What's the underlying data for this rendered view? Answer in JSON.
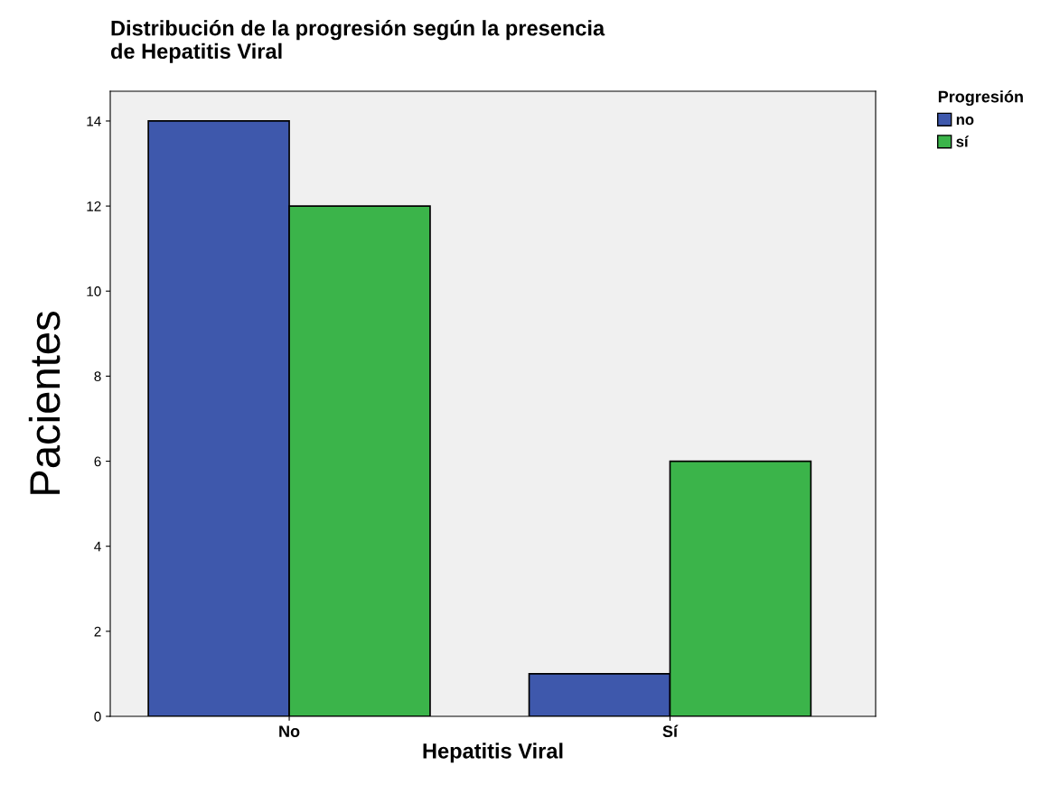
{
  "chart_data": {
    "type": "bar",
    "title": "Distribución de la progresión según la presencia\nde Hepatitis Viral",
    "xlabel": "Hepatitis Viral",
    "ylabel": "Pacientes",
    "legend_title": "Progresión",
    "categories": [
      "No",
      "Sí"
    ],
    "series": [
      {
        "name": "no",
        "color": "#3e58ac",
        "values": [
          14,
          1
        ]
      },
      {
        "name": "sí",
        "color": "#3bb44a",
        "values": [
          12,
          6
        ]
      }
    ],
    "ylim": [
      0,
      14.7
    ],
    "yticks": [
      0,
      2,
      4,
      6,
      8,
      10,
      12,
      14
    ],
    "grid": false,
    "legend": "top right"
  }
}
